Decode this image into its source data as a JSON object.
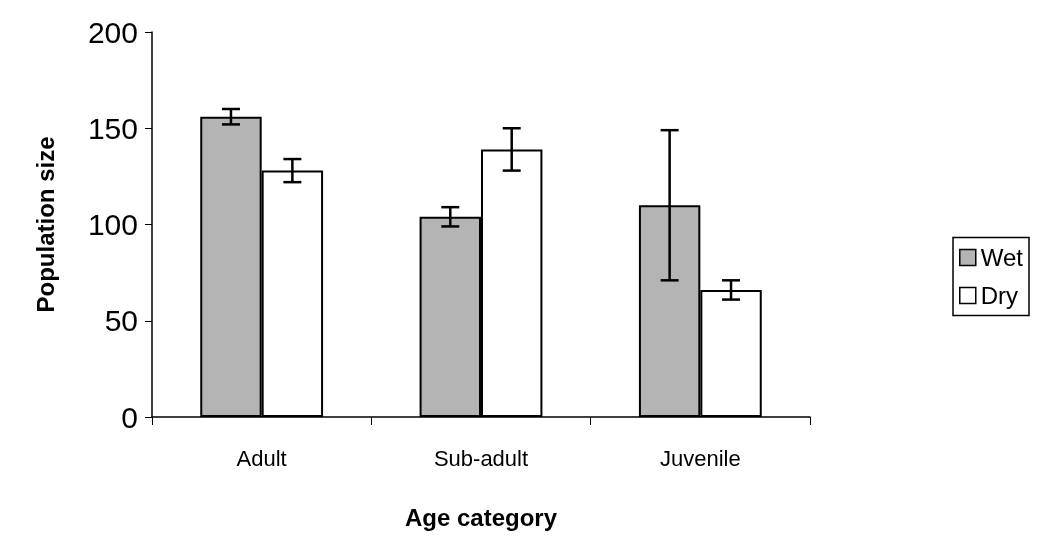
{
  "chart_data": {
    "type": "bar",
    "xlabel": "Age category",
    "ylabel": "Population size",
    "categories": [
      "Adult",
      "Sub-adult",
      "Juvenile"
    ],
    "series": [
      {
        "name": "Wet",
        "color": "#b4b4b4",
        "values": [
          156,
          104,
          110
        ],
        "errors": [
          4,
          5,
          39
        ]
      },
      {
        "name": "Dry",
        "color": "#ffffff",
        "values": [
          128,
          139,
          66
        ],
        "errors": [
          6,
          11,
          5
        ]
      }
    ],
    "ylim": [
      0,
      200
    ],
    "yticks": [
      0,
      50,
      100,
      150,
      200
    ],
    "grid": false,
    "legend": "right"
  }
}
